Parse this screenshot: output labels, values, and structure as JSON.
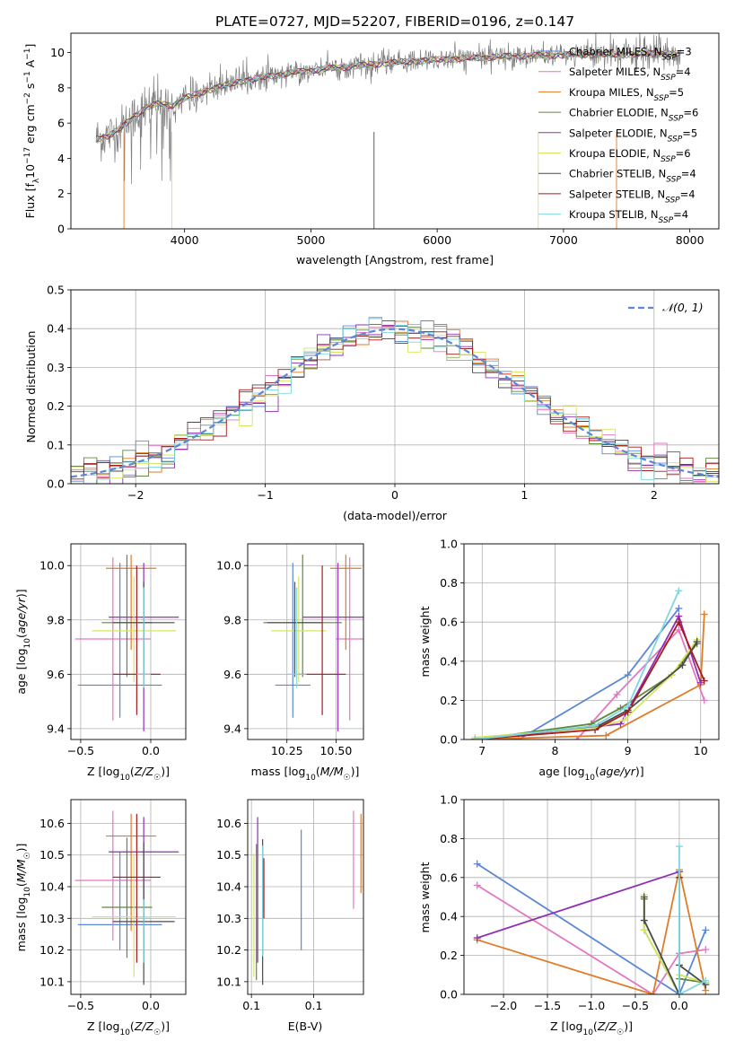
{
  "figure": {
    "suptitle": "PLATE=0727, MJD=52207, FIBERID=0196, z=0.147"
  },
  "colors": {
    "Chabrier MILES": "#5b87d6",
    "Salpeter MILES": "#e377c2",
    "Kroupa MILES": "#e07b28",
    "Chabrier ELODIE": "#5e8a3a",
    "Salpeter ELODIE": "#9130b5",
    "Kroupa ELODIE": "#d5e660",
    "Chabrier STELIB": "#4a4a4a",
    "Salpeter STELIB": "#a61b1b",
    "Kroupa STELIB": "#7fd6e0",
    "Gaussian": "#5b87d6",
    "data": "#808080"
  },
  "chart_data": [
    {
      "id": "spectrum",
      "type": "line",
      "xlabel": "wavelength [Angstrom, rest frame]",
      "ylabel": "Flux [f_λ10^-17 erg cm^-2 s^-1 A^-1]",
      "xlim": [
        3100,
        8230
      ],
      "ylim": [
        0,
        11.1
      ],
      "xticks": [
        4000,
        5000,
        6000,
        7000,
        8000
      ],
      "yticks": [
        0,
        2,
        4,
        6,
        8,
        10
      ],
      "grid": false,
      "legend_position": "upper right",
      "series": [
        {
          "name": "Chabrier MILES, N_SSP=3"
        },
        {
          "name": "Salpeter MILES, N_SSP=4"
        },
        {
          "name": "Kroupa MILES, N_SSP=5"
        },
        {
          "name": "Chabrier ELODIE, N_SSP=6"
        },
        {
          "name": "Salpeter ELODIE, N_SSP=5"
        },
        {
          "name": "Kroupa ELODIE, N_SSP=6"
        },
        {
          "name": "Chabrier STELIB, N_SSP=4"
        },
        {
          "name": "Salpeter STELIB, N_SSP=4"
        },
        {
          "name": "Kroupa STELIB, N_SSP=4"
        }
      ],
      "continuum_anchors": {
        "x": [
          3300,
          3400,
          3500,
          3600,
          3700,
          3800,
          3900,
          4000,
          4200,
          4400,
          4700,
          5000,
          5300,
          5600,
          6000,
          6300,
          6600,
          6900,
          7200,
          7500,
          7700,
          7930
        ],
        "y": [
          5.1,
          5.3,
          5.7,
          6.4,
          6.9,
          7.1,
          7.0,
          7.4,
          7.9,
          8.3,
          8.7,
          9.0,
          9.2,
          9.4,
          9.6,
          9.7,
          9.8,
          9.85,
          9.9,
          9.9,
          9.95,
          9.9
        ]
      }
    },
    {
      "id": "residuals",
      "type": "line",
      "xlabel": "(data-model)/error",
      "ylabel": "Normed distribution",
      "xlim": [
        -2.5,
        2.5
      ],
      "ylim": [
        0,
        0.5
      ],
      "xticks": [
        -2,
        -1,
        0,
        1,
        2
      ],
      "yticks": [
        0.0,
        0.1,
        0.2,
        0.3,
        0.4,
        0.5
      ],
      "grid": true,
      "legend_position": "upper right",
      "gaussian_label": "𝒩(0, 1)",
      "bin_width": 0.1
    },
    {
      "id": "age_vs_Z",
      "type": "scatter",
      "xlabel": "Z [log10(Z/Z☉)]",
      "ylabel": "age  [log10(age/yr)]",
      "xlim": [
        -0.57,
        0.25
      ],
      "ylim": [
        9.36,
        10.08
      ],
      "xticks": [
        -0.5,
        0.0
      ],
      "yticks": [
        9.4,
        9.6,
        9.8,
        10.0
      ],
      "grid": true,
      "errorbars": [
        {
          "model": "Chabrier MILES",
          "x": -0.22,
          "xerr": 0.3,
          "y": 9.56,
          "yerr": [
            0.12,
            0.45
          ]
        },
        {
          "model": "Salpeter MILES",
          "x": -0.27,
          "xerr": 0.27,
          "y": 9.73,
          "yerr": [
            0.3,
            0.3
          ]
        },
        {
          "model": "Kroupa MILES",
          "x": -0.14,
          "xerr": 0.18,
          "y": 9.99,
          "yerr": [
            0.3,
            0.05
          ]
        },
        {
          "model": "Chabrier ELODIE",
          "x": -0.17,
          "xerr": 0.18,
          "y": 9.79,
          "yerr": [
            0.2,
            0.25
          ]
        },
        {
          "model": "Salpeter ELODIE",
          "x": -0.05,
          "xerr": 0.25,
          "y": 9.81,
          "yerr": [
            0.42,
            0.2
          ]
        },
        {
          "model": "Kroupa ELODIE",
          "x": -0.12,
          "xerr": 0.3,
          "y": 9.76,
          "yerr": [
            0.19,
            0.2
          ]
        },
        {
          "model": "Chabrier STELIB",
          "x": -0.05,
          "xerr": 0.22,
          "y": 9.79,
          "yerr": [
            0.2,
            0.15
          ]
        },
        {
          "model": "Salpeter STELIB",
          "x": -0.1,
          "xerr": 0.17,
          "y": 9.6,
          "yerr": [
            0.15,
            0.4
          ]
        },
        {
          "model": "Kroupa STELIB",
          "x": -0.05,
          "xerr": 0.05,
          "y": 9.6,
          "yerr": [
            0.05,
            0.32
          ]
        }
      ]
    },
    {
      "id": "age_vs_mass",
      "type": "scatter",
      "xlabel": "mass [log10(M/M☉)]",
      "ylabel": "",
      "xlim": [
        10.05,
        10.64
      ],
      "ylim": [
        9.36,
        10.08
      ],
      "xticks": [
        10.25,
        10.5
      ],
      "yticks": [
        9.4,
        9.6,
        9.8,
        10.0
      ],
      "grid": true,
      "errorbars": [
        {
          "model": "Chabrier MILES",
          "x": 10.28,
          "xerr": 0.09,
          "y": 9.56,
          "yerr": [
            0.12,
            0.45
          ]
        },
        {
          "model": "Salpeter MILES",
          "x": 10.57,
          "xerr": 0.07,
          "y": 9.73,
          "yerr": [
            0.3,
            0.3
          ]
        },
        {
          "model": "Kroupa MILES",
          "x": 10.55,
          "xerr": 0.08,
          "y": 9.99,
          "yerr": [
            0.3,
            0.05
          ]
        },
        {
          "model": "Chabrier ELODIE",
          "x": 10.33,
          "xerr": 0.2,
          "y": 9.79,
          "yerr": [
            0.2,
            0.25
          ]
        },
        {
          "model": "Salpeter ELODIE",
          "x": 10.51,
          "xerr": 0.18,
          "y": 9.81,
          "yerr": [
            0.42,
            0.2
          ]
        },
        {
          "model": "Kroupa ELODIE",
          "x": 10.31,
          "xerr": 0.14,
          "y": 9.76,
          "yerr": [
            0.19,
            0.2
          ]
        },
        {
          "model": "Chabrier STELIB",
          "x": 10.29,
          "xerr": 0.14,
          "y": 9.79,
          "yerr": [
            0.2,
            0.15
          ]
        },
        {
          "model": "Salpeter STELIB",
          "x": 10.43,
          "xerr": 0.12,
          "y": 9.6,
          "yerr": [
            0.15,
            0.4
          ]
        },
        {
          "model": "Kroupa STELIB",
          "x": 10.3,
          "xerr": 0.05,
          "y": 9.6,
          "yerr": [
            0.05,
            0.32
          ]
        }
      ]
    },
    {
      "id": "weight_vs_age",
      "type": "line",
      "xlabel": "age  [log10(age/yr)]",
      "ylabel": "mass weight",
      "xlim": [
        6.75,
        10.25
      ],
      "ylim": [
        0,
        1
      ],
      "xticks": [
        7,
        8,
        9,
        10
      ],
      "yticks": [
        0.0,
        0.2,
        0.4,
        0.6,
        0.8,
        1.0
      ],
      "grid": true,
      "series": [
        {
          "model": "Chabrier MILES",
          "x": [
            7.5,
            9.0,
            9.7
          ],
          "y": [
            0.0,
            0.33,
            0.67
          ]
        },
        {
          "model": "Salpeter MILES",
          "x": [
            8.3,
            8.85,
            9.7,
            10.05
          ],
          "y": [
            0.0,
            0.23,
            0.56,
            0.2
          ]
        },
        {
          "model": "Kroupa MILES",
          "x": [
            6.9,
            8.7,
            10.0,
            10.05
          ],
          "y": [
            0.0,
            0.02,
            0.28,
            0.64
          ]
        },
        {
          "model": "Chabrier ELODIE",
          "x": [
            6.9,
            8.5,
            8.9,
            9.6,
            9.95
          ],
          "y": [
            0.0,
            0.08,
            0.16,
            0.33,
            0.49
          ]
        },
        {
          "model": "Salpeter ELODIE",
          "x": [
            6.9,
            8.9,
            9.7,
            10.0
          ],
          "y": [
            0.0,
            0.08,
            0.63,
            0.29
          ]
        },
        {
          "model": "Kroupa ELODIE",
          "x": [
            6.9,
            8.55,
            8.95,
            9.6,
            9.95
          ],
          "y": [
            0.01,
            0.06,
            0.1,
            0.33,
            0.51
          ]
        },
        {
          "model": "Chabrier STELIB",
          "x": [
            6.9,
            8.6,
            9.0,
            9.75,
            9.95
          ],
          "y": [
            0.0,
            0.07,
            0.15,
            0.38,
            0.5
          ]
        },
        {
          "model": "Salpeter STELIB",
          "x": [
            6.9,
            8.55,
            9.0,
            9.7,
            10.05
          ],
          "y": [
            0.0,
            0.05,
            0.14,
            0.6,
            0.3
          ]
        },
        {
          "model": "Kroupa STELIB",
          "x": [
            6.9,
            8.55,
            9.0,
            9.7
          ],
          "y": [
            0.0,
            0.07,
            0.17,
            0.76
          ]
        }
      ]
    },
    {
      "id": "mass_vs_Z",
      "type": "scatter",
      "xlabel": "Z [log10(Z/Z☉)]",
      "ylabel": "mass [log10(M/M☉)]",
      "xlim": [
        -0.57,
        0.25
      ],
      "ylim": [
        10.06,
        10.675
      ],
      "xticks": [
        -0.5,
        0.0
      ],
      "yticks": [
        10.1,
        10.2,
        10.3,
        10.4,
        10.5,
        10.6
      ],
      "grid": true,
      "errorbars": [
        {
          "model": "Chabrier MILES",
          "x": -0.22,
          "xerr": 0.3,
          "y": 10.28,
          "yerr": [
            0.08,
            0.23
          ]
        },
        {
          "model": "Salpeter MILES",
          "x": -0.27,
          "xerr": 0.27,
          "y": 10.42,
          "yerr": [
            0.19,
            0.22
          ]
        },
        {
          "model": "Kroupa MILES",
          "x": -0.14,
          "xerr": 0.18,
          "y": 10.56,
          "yerr": [
            0.3,
            0.07
          ]
        },
        {
          "model": "Chabrier ELODIE",
          "x": -0.17,
          "xerr": 0.18,
          "y": 10.335,
          "yerr": [
            0.16,
            0.22
          ]
        },
        {
          "model": "Salpeter ELODIE",
          "x": -0.05,
          "xerr": 0.25,
          "y": 10.51,
          "yerr": [
            0.35,
            0.11
          ]
        },
        {
          "model": "Kroupa ELODIE",
          "x": -0.12,
          "xerr": 0.3,
          "y": 10.305,
          "yerr": [
            0.19,
            0.2
          ]
        },
        {
          "model": "Chabrier STELIB",
          "x": -0.05,
          "xerr": 0.22,
          "y": 10.29,
          "yerr": [
            0.2,
            0.25
          ]
        },
        {
          "model": "Salpeter STELIB",
          "x": -0.1,
          "xerr": 0.17,
          "y": 10.43,
          "yerr": [
            0.27,
            0.2
          ]
        },
        {
          "model": "Kroupa STELIB",
          "x": -0.05,
          "xerr": 0.05,
          "y": 10.3,
          "yerr": [
            0.14,
            0.06
          ]
        }
      ]
    },
    {
      "id": "mass_vs_ebv",
      "type": "scatter",
      "xlabel": "E(B-V)",
      "ylabel": "",
      "xlim": [
        0.047,
        0.14
      ],
      "ylim": [
        10.06,
        10.675
      ],
      "xticks": [
        0.05,
        0.1
      ],
      "yticks": [
        10.1,
        10.2,
        10.3,
        10.4,
        10.5,
        10.6
      ],
      "grid": true,
      "errorbars": [
        {
          "model": "Chabrier MILES",
          "x": 0.09,
          "y": 10.28,
          "yerr": [
            0.08,
            0.3
          ]
        },
        {
          "model": "Salpeter MILES",
          "x": 0.132,
          "y": 10.42,
          "yerr": [
            0.09,
            0.22
          ]
        },
        {
          "model": "Kroupa MILES",
          "x": 0.138,
          "y": 10.56,
          "yerr": [
            0.18,
            0.07
          ]
        },
        {
          "model": "Chabrier ELODIE",
          "x": 0.054,
          "y": 10.335,
          "yerr": [
            0.23,
            0.2
          ]
        },
        {
          "model": "Salpeter ELODIE",
          "x": 0.055,
          "y": 10.51,
          "yerr": [
            0.35,
            0.11
          ]
        },
        {
          "model": "Kroupa ELODIE",
          "x": 0.052,
          "y": 10.305,
          "yerr": [
            0.19,
            0.2
          ]
        },
        {
          "model": "Chabrier STELIB",
          "x": 0.059,
          "y": 10.29,
          "yerr": [
            0.2,
            0.26
          ]
        },
        {
          "model": "Salpeter STELIB",
          "x": 0.06,
          "y": 10.43,
          "yerr": [
            0.13,
            0.06
          ]
        },
        {
          "model": "Kroupa STELIB",
          "x": 0.059,
          "y": 10.3,
          "yerr": [
            0.12,
            0.23
          ]
        }
      ]
    },
    {
      "id": "weight_vs_Z",
      "type": "line",
      "xlabel": "Z [log10(Z/Z☉)]",
      "ylabel": "mass weight",
      "xlim": [
        -2.45,
        0.45
      ],
      "ylim": [
        0,
        1
      ],
      "xticks": [
        -2.0,
        -1.5,
        -1.0,
        -0.5,
        0.0
      ],
      "yticks": [
        0.0,
        0.2,
        0.4,
        0.6,
        0.8,
        1.0
      ],
      "grid": true,
      "series": [
        {
          "model": "Chabrier MILES",
          "x": [
            -2.3,
            0.0,
            0.3
          ],
          "y": [
            0.67,
            0.0,
            0.33
          ]
        },
        {
          "model": "Salpeter MILES",
          "x": [
            -2.3,
            -0.3,
            0.0,
            0.3
          ],
          "y": [
            0.56,
            0.0,
            0.21,
            0.23
          ]
        },
        {
          "model": "Kroupa MILES",
          "x": [
            -2.3,
            -0.3,
            0.0,
            0.3,
            0.3
          ],
          "y": [
            0.28,
            0.0,
            0.64,
            0.02,
            0.06
          ]
        },
        {
          "model": "Chabrier ELODIE",
          "x": [
            -0.4,
            -0.4,
            0.0,
            0.0,
            0.3
          ],
          "y": [
            0.49,
            0.33,
            0.0,
            0.08,
            0.06
          ]
        },
        {
          "model": "Salpeter ELODIE",
          "x": [
            -2.3,
            0.0
          ],
          "y": [
            0.29,
            0.63
          ]
        },
        {
          "model": "Kroupa ELODIE",
          "x": [
            -0.4,
            -0.4,
            0.0,
            0.0,
            0.3
          ],
          "y": [
            0.51,
            0.33,
            0.0,
            0.1,
            0.06
          ]
        },
        {
          "model": "Chabrier STELIB",
          "x": [
            -0.4,
            -0.4,
            0.0,
            0.0,
            0.3
          ],
          "y": [
            0.5,
            0.38,
            0.0,
            0.15,
            0.05
          ]
        },
        {
          "model": "Salpeter STELIB",
          "x": [
            0.0,
            0.0
          ],
          "y": [
            0.6,
            0.0
          ]
        },
        {
          "model": "Kroupa STELIB",
          "x": [
            0.0,
            0.0,
            0.3
          ],
          "y": [
            0.76,
            0.0,
            0.07
          ]
        }
      ]
    }
  ]
}
